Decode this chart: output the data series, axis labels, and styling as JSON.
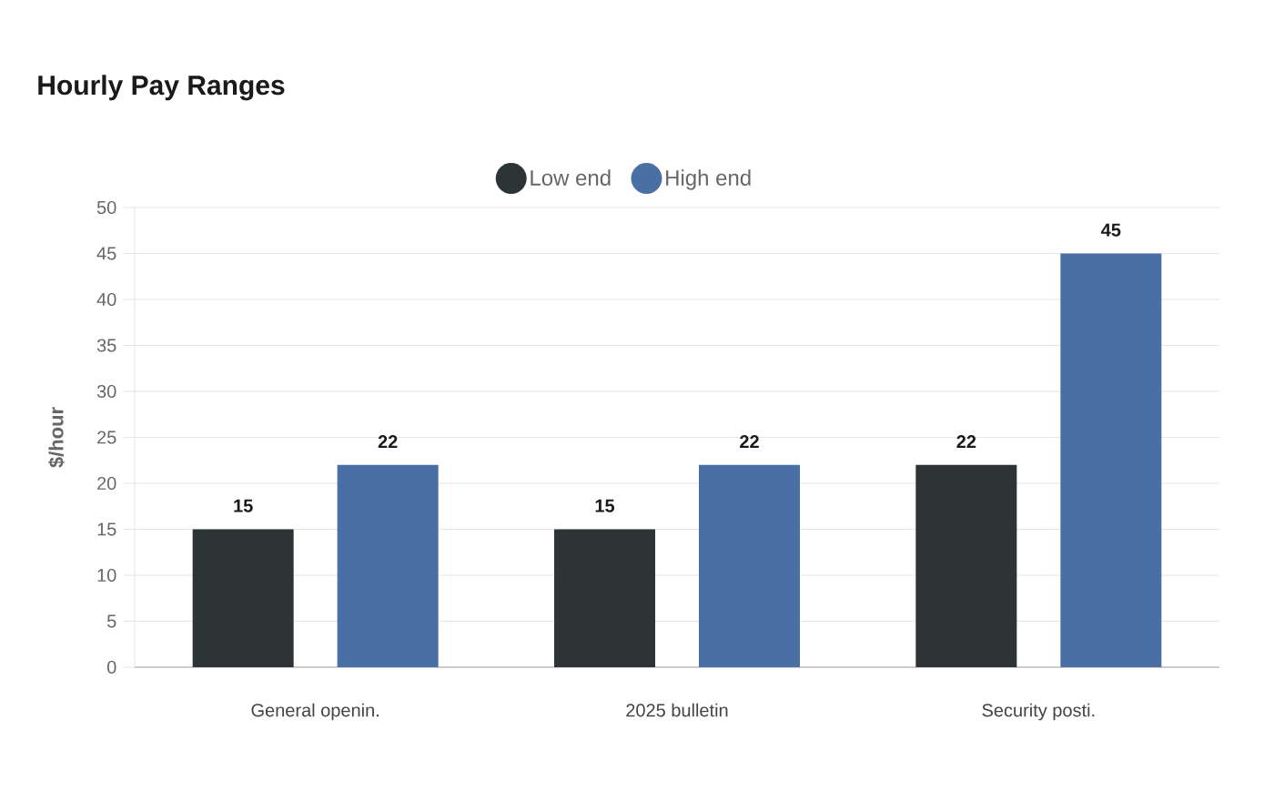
{
  "chart_data": {
    "type": "bar",
    "title": "Hourly Pay Ranges",
    "ylabel": "$/hour",
    "categories": [
      "General openin.",
      "2025 bulletin",
      "Security posti."
    ],
    "series": [
      {
        "name": "Low end",
        "color": "#2d3436",
        "values": [
          15,
          15,
          22
        ]
      },
      {
        "name": "High end",
        "color": "#4a6fa5",
        "values": [
          22,
          22,
          45
        ]
      }
    ],
    "ylim": [
      0,
      50
    ],
    "yticks": [
      0,
      5,
      10,
      15,
      20,
      25,
      30,
      35,
      40,
      45,
      50
    ],
    "grid": "y",
    "legend": "top",
    "data_labels": true
  }
}
